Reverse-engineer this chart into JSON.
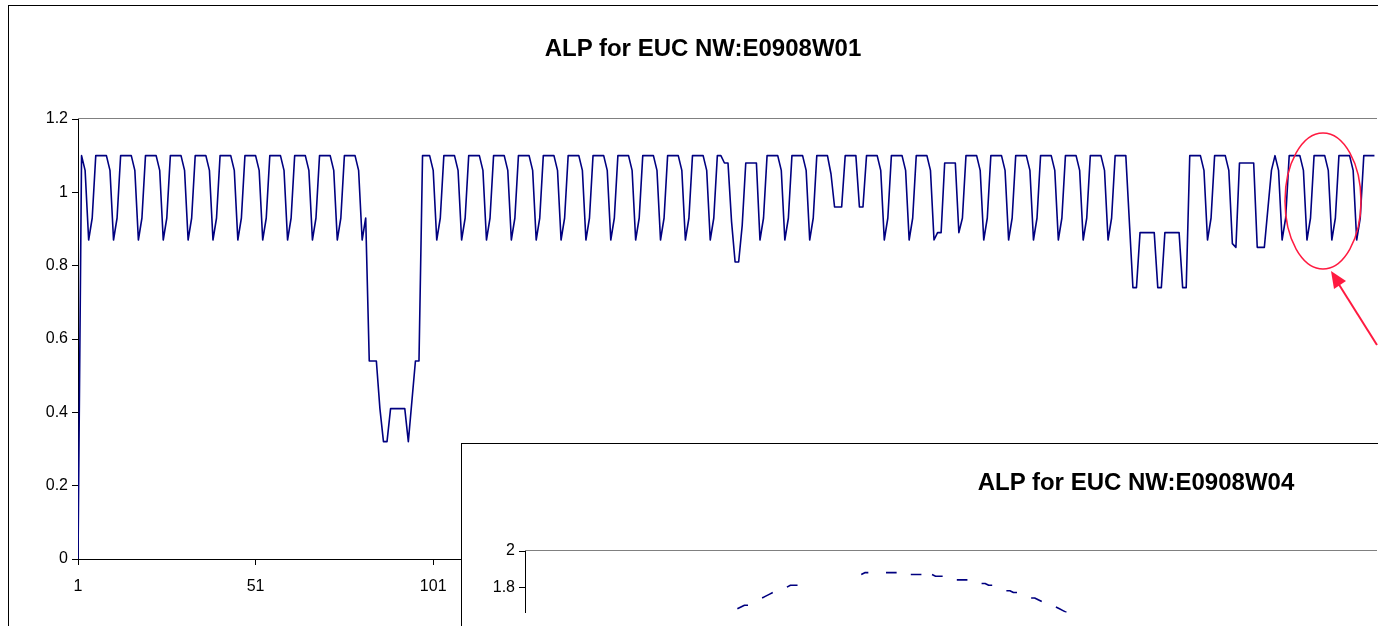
{
  "chart_data": [
    {
      "type": "line",
      "title": "ALP for EUC NW:E0908W01",
      "color": "#000080",
      "xlim": [
        1,
        367
      ],
      "xticks": [
        1,
        51,
        101
      ],
      "ylim": [
        0,
        1.2
      ],
      "yticks": [
        0,
        0.2,
        0.4,
        0.6,
        0.8,
        1,
        1.2
      ],
      "x": [
        1,
        2,
        3,
        4,
        5,
        6,
        9,
        10,
        11,
        12,
        13,
        16,
        17,
        18,
        19,
        20,
        23,
        24,
        25,
        26,
        27,
        30,
        31,
        32,
        33,
        34,
        37,
        38,
        39,
        40,
        41,
        44,
        45,
        46,
        47,
        48,
        51,
        52,
        53,
        54,
        55,
        58,
        59,
        60,
        61,
        62,
        65,
        66,
        67,
        68,
        69,
        72,
        73,
        74,
        75,
        76,
        79,
        80,
        81,
        82,
        83,
        85,
        86,
        87,
        88,
        89,
        93,
        94,
        96,
        97,
        98,
        100,
        101,
        102,
        103,
        104,
        107,
        108,
        109,
        110,
        111,
        114,
        115,
        116,
        117,
        118,
        121,
        122,
        123,
        124,
        125,
        128,
        129,
        130,
        131,
        132,
        135,
        136,
        137,
        138,
        139,
        142,
        143,
        144,
        145,
        146,
        149,
        150,
        151,
        152,
        153,
        156,
        157,
        158,
        159,
        160,
        163,
        164,
        165,
        166,
        167,
        170,
        171,
        172,
        173,
        174,
        177,
        178,
        179,
        180,
        181,
        182,
        183,
        184,
        185,
        186,
        187,
        188,
        189,
        192,
        193,
        194,
        195,
        198,
        199,
        200,
        201,
        202,
        205,
        206,
        207,
        208,
        209,
        212,
        213,
        214,
        216,
        217,
        220,
        221,
        222,
        223,
        226,
        227,
        228,
        229,
        230,
        233,
        234,
        235,
        236,
        237,
        240,
        241,
        242,
        243,
        244,
        245,
        248,
        249,
        250,
        251,
        254,
        255,
        256,
        257,
        258,
        261,
        262,
        263,
        264,
        265,
        268,
        269,
        270,
        271,
        272,
        275,
        276,
        277,
        278,
        279,
        282,
        283,
        284,
        285,
        286,
        289,
        290,
        291,
        292,
        293,
        296,
        298,
        299,
        300,
        304,
        305,
        306,
        307,
        311,
        312,
        313,
        314,
        317,
        318,
        319,
        320,
        321,
        324,
        325,
        326,
        327,
        328,
        332,
        333,
        335,
        337,
        338,
        339,
        340,
        341,
        342,
        345,
        346,
        347,
        348,
        349,
        352,
        353,
        354,
        355,
        356,
        359,
        360,
        361,
        362,
        363,
        366
      ],
      "values": [
        0,
        1.1,
        1.06,
        0.87,
        0.93,
        1.1,
        1.1,
        1.06,
        0.87,
        0.93,
        1.1,
        1.1,
        1.06,
        0.87,
        0.93,
        1.1,
        1.1,
        1.06,
        0.87,
        0.93,
        1.1,
        1.1,
        1.06,
        0.87,
        0.93,
        1.1,
        1.1,
        1.06,
        0.87,
        0.93,
        1.1,
        1.1,
        1.06,
        0.87,
        0.93,
        1.1,
        1.1,
        1.06,
        0.87,
        0.93,
        1.1,
        1.1,
        1.06,
        0.87,
        0.93,
        1.1,
        1.1,
        1.06,
        0.87,
        0.93,
        1.1,
        1.1,
        1.06,
        0.87,
        0.93,
        1.1,
        1.1,
        1.06,
        0.87,
        0.93,
        0.54,
        0.54,
        0.41,
        0.32,
        0.32,
        0.41,
        0.41,
        0.32,
        0.54,
        0.54,
        1.1,
        1.1,
        1.06,
        0.87,
        0.93,
        1.1,
        1.1,
        1.06,
        0.87,
        0.93,
        1.1,
        1.1,
        1.06,
        0.87,
        0.93,
        1.1,
        1.1,
        1.06,
        0.87,
        0.93,
        1.1,
        1.1,
        1.06,
        0.87,
        0.93,
        1.1,
        1.1,
        1.06,
        0.87,
        0.93,
        1.1,
        1.1,
        1.06,
        0.87,
        0.93,
        1.1,
        1.1,
        1.06,
        0.87,
        0.93,
        1.1,
        1.1,
        1.06,
        0.87,
        0.93,
        1.1,
        1.1,
        1.06,
        0.87,
        0.93,
        1.1,
        1.1,
        1.06,
        0.87,
        0.93,
        1.1,
        1.1,
        1.06,
        0.87,
        0.93,
        1.1,
        1.1,
        1.08,
        1.08,
        0.92,
        0.81,
        0.81,
        0.91,
        1.08,
        1.08,
        0.87,
        0.93,
        1.1,
        1.1,
        1.06,
        0.87,
        0.93,
        1.1,
        1.1,
        1.06,
        0.87,
        0.93,
        1.1,
        1.1,
        1.05,
        0.96,
        0.96,
        1.1,
        1.1,
        0.96,
        0.96,
        1.1,
        1.1,
        1.06,
        0.87,
        0.93,
        1.1,
        1.1,
        1.06,
        0.87,
        0.93,
        1.1,
        1.1,
        1.06,
        0.87,
        0.89,
        0.89,
        1.08,
        1.08,
        0.89,
        0.93,
        1.1,
        1.1,
        1.06,
        0.87,
        0.93,
        1.1,
        1.1,
        1.06,
        0.87,
        0.93,
        1.1,
        1.1,
        1.06,
        0.87,
        0.93,
        1.1,
        1.1,
        1.06,
        0.87,
        0.93,
        1.1,
        1.1,
        1.06,
        0.87,
        0.93,
        1.1,
        1.1,
        1.06,
        0.87,
        0.93,
        1.1,
        1.1,
        0.74,
        0.74,
        0.89,
        0.89,
        0.74,
        0.74,
        0.89,
        0.89,
        0.74,
        0.74,
        1.1,
        1.1,
        1.06,
        0.87,
        0.93,
        1.1,
        1.1,
        1.06,
        0.86,
        0.85,
        1.08,
        1.08,
        0.85,
        0.85,
        1.06,
        1.1,
        1.06,
        0.87,
        0.93,
        1.1,
        1.1,
        1.06,
        0.87,
        0.93,
        1.1,
        1.1,
        1.06,
        0.87,
        0.93,
        1.1,
        1.1,
        1.06,
        0.87,
        0.93,
        1.1,
        1.1
      ]
    },
    {
      "type": "line",
      "title": "ALP for EUC NW:E0908W04",
      "color": "#000080",
      "ylim": [
        1.66,
        2
      ],
      "yticks": [
        1.8,
        2
      ],
      "tick_labels": "y",
      "categories": [
        null,
        null,
        null,
        null,
        null,
        null,
        null,
        null,
        null,
        null,
        null,
        null,
        null,
        null,
        null,
        null,
        null,
        null,
        null,
        null,
        null,
        null,
        null,
        null,
        null,
        null,
        null,
        null,
        null,
        null,
        null,
        null,
        null,
        null,
        null,
        null,
        null,
        null,
        null,
        null,
        null,
        null,
        null,
        null,
        null,
        null,
        null,
        null,
        null,
        null,
        null,
        null,
        null,
        null,
        null,
        null,
        null,
        null,
        null,
        null,
        null,
        null,
        null,
        null,
        null,
        null,
        null,
        null,
        null,
        null,
        null,
        null,
        null,
        null,
        null,
        null,
        null,
        null,
        null,
        null,
        null,
        null,
        null,
        null,
        null,
        null,
        null,
        null,
        null,
        null,
        null,
        null,
        null,
        null,
        null,
        null,
        null,
        null,
        null,
        null,
        null,
        null,
        null,
        null,
        null,
        null,
        null,
        null,
        null,
        null,
        null,
        null,
        null,
        null,
        null,
        null,
        null,
        null,
        null,
        null,
        null,
        null,
        null,
        null,
        null,
        null,
        null,
        null,
        null,
        null,
        null,
        null,
        null,
        null,
        null,
        null,
        null,
        null,
        null,
        null,
        null,
        null,
        null,
        null,
        null,
        null,
        null,
        null,
        null,
        null,
        null,
        null,
        null,
        null,
        null,
        null,
        null,
        null,
        null,
        null,
        null,
        null,
        null,
        null,
        null,
        null,
        null,
        null,
        null,
        null,
        null,
        null,
        null,
        null,
        null,
        null,
        null,
        null,
        null,
        null,
        null,
        null,
        null,
        null,
        null,
        null,
        null,
        null,
        null,
        null,
        null,
        null,
        null,
        null,
        null,
        null,
        null,
        null,
        null,
        null,
        null,
        null,
        null,
        null,
        null,
        null,
        null,
        null,
        null,
        null,
        null,
        null,
        null,
        null,
        null,
        null,
        null,
        null,
        null,
        null,
        null,
        null,
        null,
        null,
        null,
        null,
        null,
        null,
        null,
        null,
        null,
        null,
        null,
        null,
        null,
        null,
        null,
        null,
        null,
        null,
        null,
        null
      ],
      "values": [
        null,
        null,
        null,
        null,
        null,
        null,
        null,
        null,
        null,
        null,
        null,
        null,
        null,
        null,
        null,
        null,
        null,
        null,
        null,
        null,
        null,
        null,
        null,
        null,
        null,
        null,
        null,
        null,
        null,
        null,
        null,
        null,
        null,
        null,
        null,
        null,
        null,
        null,
        null,
        null,
        null,
        null,
        null,
        null,
        null,
        null,
        null,
        null,
        null,
        null,
        null,
        null,
        null,
        null,
        null,
        null,
        null,
        null,
        null,
        null,
        1.68,
        1.69,
        1.7,
        1.7,
        null,
        null,
        null,
        1.74,
        1.75,
        1.76,
        1.77,
        null,
        null,
        null,
        1.8,
        1.81,
        1.81,
        1.81,
        null,
        null,
        null,
        null,
        null,
        null,
        null,
        null,
        null,
        null,
        null,
        null,
        null,
        null,
        null,
        null,
        null,
        1.87,
        1.88,
        1.88,
        null,
        null,
        null,
        null,
        1.88,
        1.88,
        1.88,
        1.88,
        null,
        null,
        null,
        1.87,
        1.87,
        1.87,
        1.87,
        null,
        null,
        1.87,
        1.86,
        1.86,
        1.86,
        null,
        null,
        null,
        1.84,
        1.84,
        1.84,
        1.84,
        null,
        null,
        null,
        1.82,
        1.82,
        1.81,
        1.81,
        null,
        null,
        null,
        1.78,
        1.78,
        1.77,
        1.77,
        null,
        null,
        null,
        1.74,
        1.74,
        1.73,
        1.72,
        null,
        null,
        null,
        1.69,
        1.68,
        1.67,
        1.66,
        null,
        null,
        null,
        null,
        null,
        null,
        null,
        null,
        null,
        null,
        null,
        null,
        null,
        null,
        null,
        null,
        null,
        null,
        null,
        null,
        null,
        null,
        null,
        null,
        null,
        null,
        null,
        null,
        null,
        null,
        null,
        null,
        null,
        null,
        null,
        null,
        null,
        null,
        null,
        null,
        null,
        null,
        null,
        null,
        null,
        null,
        null,
        null,
        null,
        null,
        null,
        null,
        null,
        null,
        null,
        null,
        null,
        null,
        null,
        null,
        null,
        null,
        null,
        null,
        null,
        null,
        null,
        null,
        null,
        null,
        null,
        null,
        null,
        null,
        null,
        null,
        null,
        null,
        null,
        null,
        null,
        null,
        null,
        null,
        null,
        null,
        null,
        null
      ]
    }
  ]
}
